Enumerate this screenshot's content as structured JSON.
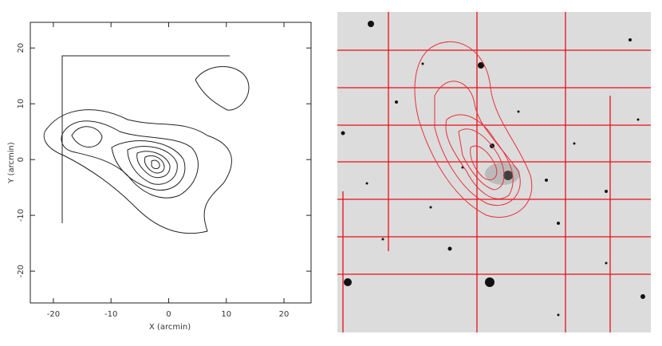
{
  "chart_data": {
    "type": "contour",
    "xlabel": "X (arcmin)",
    "ylabel": "Y (arcmin)",
    "xlim": [
      -24,
      24.7
    ],
    "ylim": [
      -25.7,
      24.6
    ],
    "xticks": [
      -20,
      -10,
      0,
      10,
      20
    ],
    "yticks": [
      20,
      10,
      0,
      -10,
      -20
    ]
  }
}
